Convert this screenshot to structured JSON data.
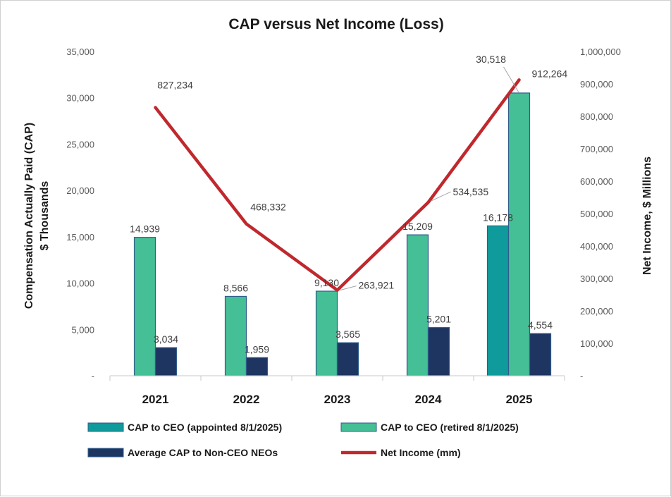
{
  "chart_data": {
    "type": "bar+line",
    "title": "CAP versus Net Income (Loss)",
    "categories": [
      "2021",
      "2022",
      "2023",
      "2024",
      "2025"
    ],
    "left_axis": {
      "label_line1": "Compensation Actually Paid (CAP)",
      "label_line2": "$ Thousands",
      "min": 0,
      "max": 35000,
      "step": 5000,
      "tick_labels": [
        "-",
        "5,000",
        "10,000",
        "15,000",
        "20,000",
        "25,000",
        "30,000",
        "35,000"
      ]
    },
    "right_axis": {
      "label": "Net Income, $ Millions",
      "min": 0,
      "max": 1000000,
      "step": 100000,
      "tick_labels": [
        "-",
        "100,000",
        "200,000",
        "300,000",
        "400,000",
        "500,000",
        "600,000",
        "700,000",
        "800,000",
        "900,000",
        "1,000,000"
      ]
    },
    "series": [
      {
        "name": "CAP to CEO (appointed 8/1/2025)",
        "kind": "bar",
        "axis": "left",
        "color": "#0f9b9b",
        "values": [
          null,
          null,
          null,
          null,
          16178
        ],
        "labels": [
          "",
          "",
          "",
          "",
          "16,178"
        ]
      },
      {
        "name": "CAP to CEO (retired 8/1/2025)",
        "kind": "bar",
        "axis": "left",
        "color": "#45bf96",
        "values": [
          14939,
          8566,
          9130,
          15209,
          30518
        ],
        "labels": [
          "14,939",
          "8,566",
          "9,130",
          "15,209",
          "30,518"
        ]
      },
      {
        "name": "Average CAP to Non-CEO NEOs",
        "kind": "bar",
        "axis": "left",
        "color": "#1e3562",
        "values": [
          3034,
          1959,
          3565,
          5201,
          4554
        ],
        "labels": [
          "3,034",
          "1,959",
          "3,565",
          "5,201",
          "4,554"
        ]
      },
      {
        "name": "Net Income (mm)",
        "kind": "line",
        "axis": "right",
        "color": "#c0282e",
        "values": [
          827234,
          468332,
          263921,
          534535,
          912264
        ],
        "labels": [
          "827,234",
          "468,332",
          "263,921",
          "534,535",
          "912,264"
        ]
      }
    ],
    "legend": [
      {
        "name": "CAP to CEO (appointed 8/1/2025)",
        "kind": "bar",
        "color": "#0f9b9b"
      },
      {
        "name": "CAP to CEO (retired 8/1/2025)",
        "kind": "bar",
        "color": "#45bf96"
      },
      {
        "name": "Average CAP to Non-CEO NEOs",
        "kind": "bar",
        "color": "#1e3562"
      },
      {
        "name": "Net Income (mm)",
        "kind": "line",
        "color": "#c0282e"
      }
    ],
    "legend_position": "bottom",
    "grid": false
  }
}
